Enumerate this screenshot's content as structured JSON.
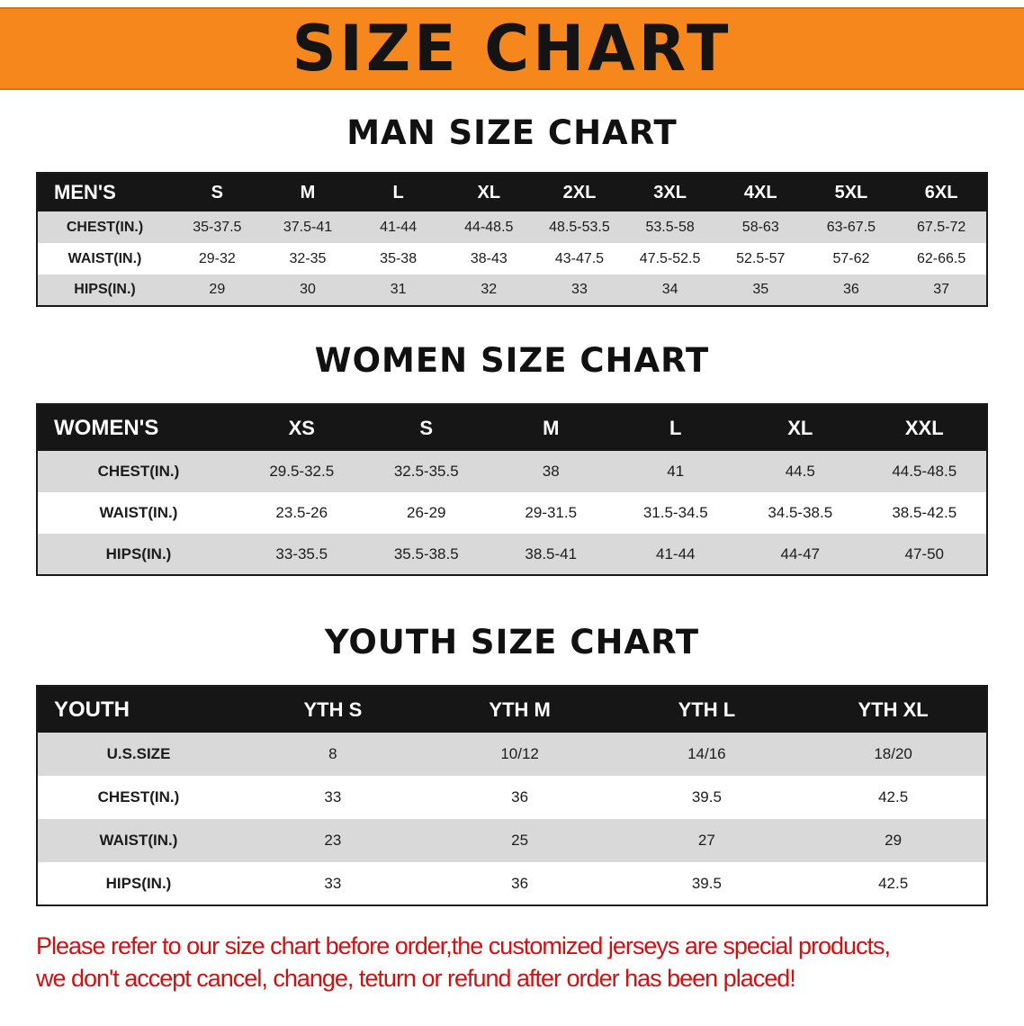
{
  "banner": {
    "title": "SIZE CHART"
  },
  "sections": [
    {
      "heading": "MAN SIZE CHART",
      "table": {
        "header": [
          "MEN'S",
          "S",
          "M",
          "L",
          "XL",
          "2XL",
          "3XL",
          "4XL",
          "5XL",
          "6XL"
        ],
        "rows": [
          {
            "label": "CHEST(IN.)",
            "values": [
              "35-37.5",
              "37.5-41",
              "41-44",
              "44-48.5",
              "48.5-53.5",
              "53.5-58",
              "58-63",
              "63-67.5",
              "67.5-72"
            ]
          },
          {
            "label": "WAIST(IN.)",
            "values": [
              "29-32",
              "32-35",
              "35-38",
              "38-43",
              "43-47.5",
              "47.5-52.5",
              "52.5-57",
              "57-62",
              "62-66.5"
            ]
          },
          {
            "label": "HIPS(IN.)",
            "values": [
              "29",
              "30",
              "31",
              "32",
              "33",
              "34",
              "35",
              "36",
              "37"
            ]
          }
        ]
      }
    },
    {
      "heading": "WOMEN SIZE CHART",
      "table": {
        "header": [
          "WOMEN'S",
          "XS",
          "S",
          "M",
          "L",
          "XL",
          "XXL"
        ],
        "rows": [
          {
            "label": "CHEST(IN.)",
            "values": [
              "29.5-32.5",
              "32.5-35.5",
              "38",
              "41",
              "44.5",
              "44.5-48.5"
            ]
          },
          {
            "label": "WAIST(IN.)",
            "values": [
              "23.5-26",
              "26-29",
              "29-31.5",
              "31.5-34.5",
              "34.5-38.5",
              "38.5-42.5"
            ]
          },
          {
            "label": "HIPS(IN.)",
            "values": [
              "33-35.5",
              "35.5-38.5",
              "38.5-41",
              "41-44",
              "44-47",
              "47-50"
            ]
          }
        ]
      }
    },
    {
      "heading": "YOUTH SIZE CHART",
      "table": {
        "header": [
          "YOUTH",
          "YTH S",
          "YTH M",
          "YTH L",
          "YTH XL"
        ],
        "rows": [
          {
            "label": "U.S.SIZE",
            "values": [
              "8",
              "10/12",
              "14/16",
              "18/20"
            ]
          },
          {
            "label": "CHEST(IN.)",
            "values": [
              "33",
              "36",
              "39.5",
              "42.5"
            ]
          },
          {
            "label": "WAIST(IN.)",
            "values": [
              "23",
              "25",
              "27",
              "29"
            ]
          },
          {
            "label": "HIPS(IN.)",
            "values": [
              "33",
              "36",
              "39.5",
              "42.5"
            ]
          }
        ]
      }
    }
  ],
  "footer": {
    "line1": "Please refer to our size chart before order,the customized jerseys are special products,",
    "line2": "we don't accept cancel, change, teturn or refund after order has been placed!"
  },
  "colors": {
    "banner_bg": "#f6871d",
    "banner_border": "#d9730f",
    "banner_text": "#141414",
    "table_header_bg": "#161616",
    "table_header_text": "#ffffff",
    "table_border": "#1a1a1a",
    "row_stripe": "#d9d9d9",
    "footer_text": "#cd1212"
  }
}
